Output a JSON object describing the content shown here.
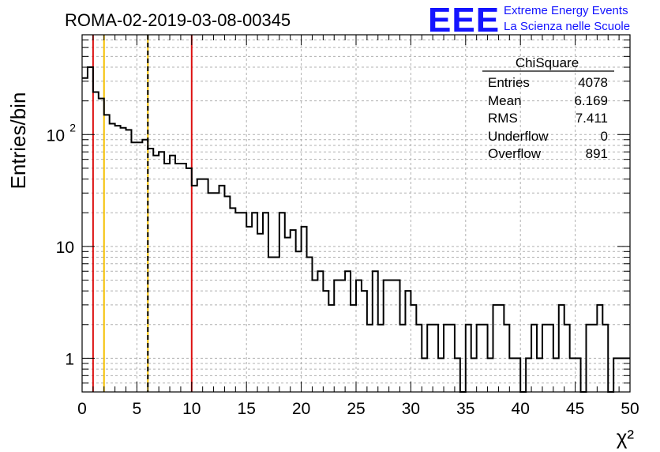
{
  "header": {
    "run_title": "ROMA-02-2019-03-08-00345",
    "logo_text": "EEE",
    "logo_line1": "Extreme Energy Events",
    "logo_line2": "La Scienza nelle Scuole"
  },
  "stats_box": {
    "title": "ChiSquare",
    "rows": [
      {
        "label": "Entries",
        "value": "4078"
      },
      {
        "label": "Mean",
        "value": "6.169"
      },
      {
        "label": "RMS",
        "value": "7.411"
      },
      {
        "label": "Underflow",
        "value": "0"
      },
      {
        "label": "Overflow",
        "value": "891"
      }
    ]
  },
  "chart_data": {
    "type": "histogram",
    "title": "ROMA-02-2019-03-08-00345",
    "xlabel": "χ²",
    "ylabel": "Entries/bin",
    "xlim": [
      0,
      50
    ],
    "ylim": [
      0.5,
      780
    ],
    "y_scale": "log",
    "grid": true,
    "bin_width": 0.5,
    "x_ticks": [
      0,
      5,
      10,
      15,
      20,
      25,
      30,
      35,
      40,
      45,
      50
    ],
    "x_tick_labels": [
      "0",
      "5",
      "10",
      "15",
      "20",
      "25",
      "30",
      "35",
      "40",
      "45",
      "50"
    ],
    "y_tick_labels": [
      {
        "value": 1,
        "label": "1"
      },
      {
        "value": 10,
        "label": "10"
      },
      {
        "value": 100,
        "label": "10^2"
      }
    ],
    "values": [
      320,
      400,
      240,
      210,
      150,
      125,
      120,
      115,
      110,
      85,
      85,
      90,
      75,
      65,
      70,
      55,
      65,
      55,
      55,
      50,
      35,
      40,
      40,
      30,
      30,
      35,
      28,
      22,
      20,
      20,
      15,
      20,
      13,
      20,
      8,
      8,
      20,
      12,
      14,
      9,
      15,
      8,
      5,
      6,
      4,
      3,
      5,
      5,
      6,
      3,
      5,
      4,
      2,
      6,
      2,
      5,
      5,
      5,
      2,
      4,
      3,
      2,
      1,
      2,
      2,
      1,
      2,
      2,
      1,
      0,
      2,
      1,
      2,
      2,
      1,
      3,
      3,
      2,
      1,
      1,
      0,
      1,
      2,
      1,
      2,
      2,
      1,
      3,
      2,
      1,
      1,
      0,
      2,
      2,
      3,
      2,
      0,
      1,
      1,
      1
    ],
    "vertical_lines": [
      {
        "x": 1,
        "color": "#dd1111",
        "style": "solid"
      },
      {
        "x": 2,
        "color": "#f5c000",
        "style": "solid"
      },
      {
        "x": 6,
        "color": "#f5c000",
        "style": "solid"
      },
      {
        "x": 6,
        "color": "#000000",
        "style": "dashed"
      },
      {
        "x": 10,
        "color": "#dd1111",
        "style": "solid"
      }
    ]
  },
  "colors": {
    "logo": "#1414ff",
    "histogram": "#000000",
    "grid": "#b0b0b0"
  }
}
